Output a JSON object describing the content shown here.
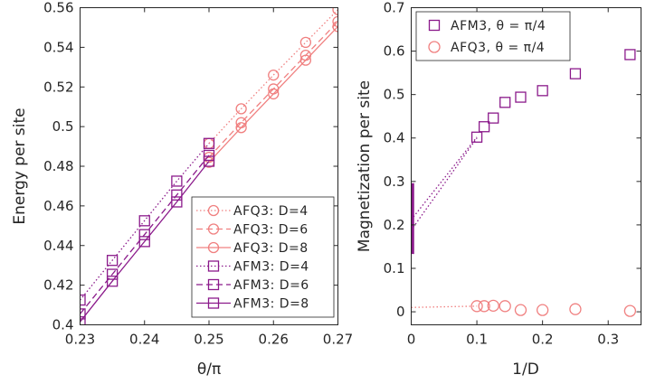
{
  "chart_data": [
    {
      "type": "line",
      "xlabel": "θ/π",
      "ylabel": "Energy per site",
      "xlim": [
        0.23,
        0.27
      ],
      "ylim": [
        0.4,
        0.56
      ],
      "xticks": [
        0.23,
        0.24,
        0.25,
        0.26,
        0.27
      ],
      "xtick_labels": [
        "0.23",
        "0.24",
        "0.25",
        "0.26",
        "0.27"
      ],
      "yticks": [
        0.4,
        0.42,
        0.44,
        0.46,
        0.48,
        0.5,
        0.52,
        0.54,
        0.56
      ],
      "ytick_labels": [
        "0.4",
        "0.42",
        "0.44",
        "0.46",
        "0.48",
        "0.5",
        "0.52",
        "0.54",
        "0.56"
      ],
      "legend_position": "bottom-right",
      "series": [
        {
          "name": "AFQ3: D=4",
          "color": "#f08080",
          "dash": "dotted",
          "marker": "circle",
          "points": [
            [
              0.25,
              0.4915
            ],
            [
              0.255,
              0.509
            ],
            [
              0.26,
              0.526
            ],
            [
              0.265,
              0.5425
            ],
            [
              0.27,
              0.559
            ]
          ]
        },
        {
          "name": "AFQ3: D=6",
          "color": "#f08080",
          "dash": "dashed",
          "marker": "circle",
          "points": [
            [
              0.25,
              0.4845
            ],
            [
              0.255,
              0.502
            ],
            [
              0.26,
              0.519
            ],
            [
              0.265,
              0.536
            ],
            [
              0.27,
              0.553
            ]
          ]
        },
        {
          "name": "AFQ3: D=8",
          "color": "#f08080",
          "dash": "solid",
          "marker": "circle",
          "points": [
            [
              0.25,
              0.482
            ],
            [
              0.255,
              0.4995
            ],
            [
              0.26,
              0.5165
            ],
            [
              0.265,
              0.5335
            ],
            [
              0.27,
              0.5505
            ]
          ]
        },
        {
          "name": "AFM3: D=4",
          "color": "#8b1a8b",
          "dash": "dotted",
          "marker": "square",
          "points": [
            [
              0.23,
              0.4125
            ],
            [
              0.235,
              0.4325
            ],
            [
              0.24,
              0.4525
            ],
            [
              0.245,
              0.4725
            ],
            [
              0.25,
              0.4915
            ]
          ]
        },
        {
          "name": "AFM3: D=6",
          "color": "#8b1a8b",
          "dash": "dashed",
          "marker": "square",
          "points": [
            [
              0.23,
              0.4055
            ],
            [
              0.235,
              0.4255
            ],
            [
              0.24,
              0.4455
            ],
            [
              0.245,
              0.4655
            ],
            [
              0.25,
              0.4855
            ]
          ]
        },
        {
          "name": "AFM3: D=8",
          "color": "#8b1a8b",
          "dash": "solid",
          "marker": "square",
          "points": [
            [
              0.23,
              0.4015
            ],
            [
              0.235,
              0.422
            ],
            [
              0.24,
              0.442
            ],
            [
              0.245,
              0.462
            ],
            [
              0.25,
              0.4825
            ]
          ]
        }
      ]
    },
    {
      "type": "scatter",
      "xlabel": "1/D",
      "ylabel": "Magnetization per site",
      "xlim": [
        0,
        0.35
      ],
      "ylim": [
        -0.03,
        0.7
      ],
      "xticks": [
        0,
        0.1,
        0.2,
        0.3
      ],
      "xtick_labels": [
        "0",
        "0.1",
        "0.2",
        "0.3"
      ],
      "yticks": [
        0,
        0.1,
        0.2,
        0.3,
        0.4,
        0.5,
        0.6,
        0.7
      ],
      "ytick_labels": [
        "0",
        "0.1",
        "0.2",
        "0.3",
        "0.4",
        "0.5",
        "0.6",
        "0.7"
      ],
      "legend_position": "top-left",
      "series": [
        {
          "name": "AFM3, θ = π/4",
          "color": "#8b1a8b",
          "marker": "square",
          "points": [
            [
              0.1,
              0.402
            ],
            [
              0.1111,
              0.426
            ],
            [
              0.125,
              0.446
            ],
            [
              0.1429,
              0.482
            ],
            [
              0.1667,
              0.494
            ],
            [
              0.2,
              0.509
            ],
            [
              0.25,
              0.548
            ],
            [
              0.3333,
              0.592
            ]
          ]
        },
        {
          "name": "AFQ3, θ = π/4",
          "color": "#f08080",
          "marker": "circle",
          "points": [
            [
              0.1,
              0.013
            ],
            [
              0.1111,
              0.013
            ],
            [
              0.125,
              0.014
            ],
            [
              0.1429,
              0.013
            ],
            [
              0.1667,
              0.004
            ],
            [
              0.2,
              0.004
            ],
            [
              0.25,
              0.006
            ],
            [
              0.3333,
              0.002
            ]
          ]
        }
      ],
      "fits": [
        {
          "color": "#8b1a8b",
          "from": [
            0,
            0.188
          ],
          "to": [
            0.1,
            0.4
          ]
        },
        {
          "color": "#8b1a8b",
          "from": [
            0,
            0.212
          ],
          "to": [
            0.1,
            0.402
          ]
        },
        {
          "color": "#f08080",
          "from": [
            0,
            0.01
          ],
          "to": [
            0.1,
            0.013
          ]
        }
      ],
      "error_bar": {
        "color": "#8b1a8b",
        "x": 0,
        "y_low": 0.133,
        "y_high": 0.296
      }
    }
  ]
}
